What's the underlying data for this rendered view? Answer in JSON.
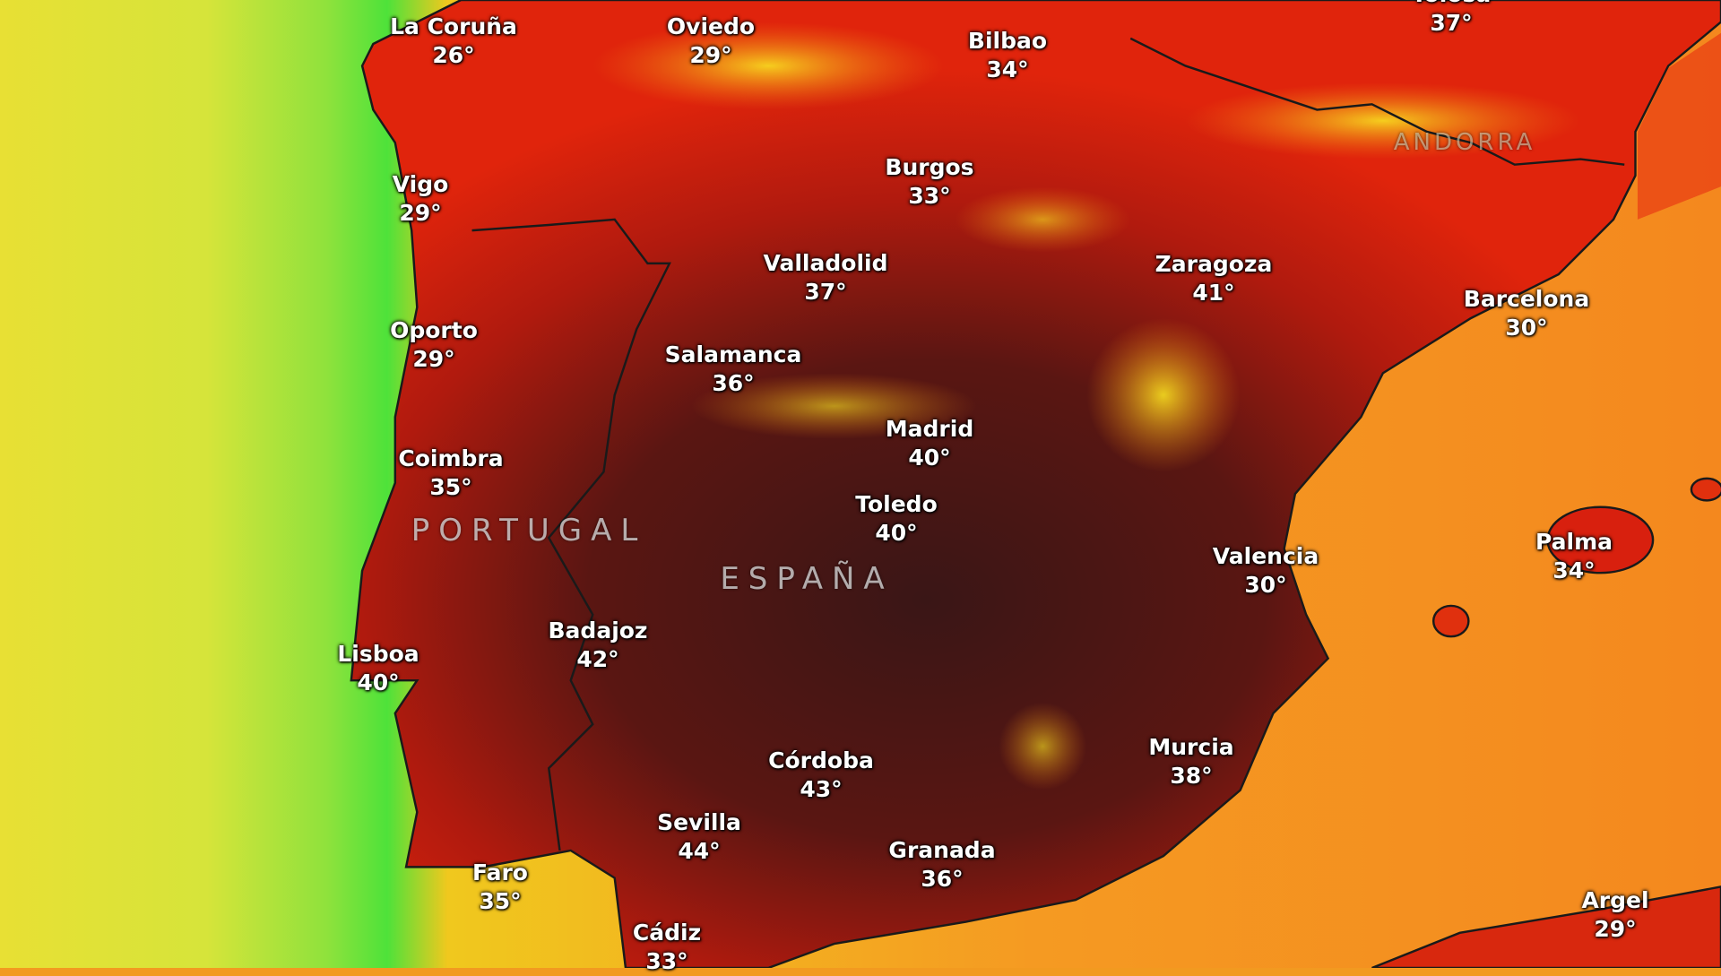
{
  "map": {
    "type": "temperature-heatmap",
    "unit": "°",
    "colors": {
      "sea_west_yellow": "#e4e23a",
      "sea_west_green": "#5fe23a",
      "sea_east": "#f59222",
      "land_hot": "#d41c0c",
      "land_extreme": "#3c1616",
      "land_mild": "#f6d21e",
      "border": "#1a1a1a"
    },
    "countries": [
      {
        "name": "PORTUGAL"
      },
      {
        "name": "ESPAÑA"
      },
      {
        "name": "ANDORRA"
      }
    ],
    "cities": [
      {
        "name": "La Coruña",
        "temp": "26°"
      },
      {
        "name": "Oviedo",
        "temp": "29°"
      },
      {
        "name": "Bilbao",
        "temp": "34°"
      },
      {
        "name": "Tolosa",
        "temp": "37°"
      },
      {
        "name": "Vigo",
        "temp": "29°"
      },
      {
        "name": "Burgos",
        "temp": "33°"
      },
      {
        "name": "Valladolid",
        "temp": "37°"
      },
      {
        "name": "Zaragoza",
        "temp": "41°"
      },
      {
        "name": "Barcelona",
        "temp": "30°"
      },
      {
        "name": "Oporto",
        "temp": "29°"
      },
      {
        "name": "Salamanca",
        "temp": "36°"
      },
      {
        "name": "Madrid",
        "temp": "40°"
      },
      {
        "name": "Coimbra",
        "temp": "35°"
      },
      {
        "name": "Toledo",
        "temp": "40°"
      },
      {
        "name": "Valencia",
        "temp": "30°"
      },
      {
        "name": "Palma",
        "temp": "34°"
      },
      {
        "name": "Badajoz",
        "temp": "42°"
      },
      {
        "name": "Lisboa",
        "temp": "40°"
      },
      {
        "name": "Córdoba",
        "temp": "43°"
      },
      {
        "name": "Murcia",
        "temp": "38°"
      },
      {
        "name": "Sevilla",
        "temp": "44°"
      },
      {
        "name": "Granada",
        "temp": "36°"
      },
      {
        "name": "Faro",
        "temp": "35°"
      },
      {
        "name": "Cádiz",
        "temp": "33°"
      },
      {
        "name": "Argel",
        "temp": "29°"
      }
    ]
  }
}
